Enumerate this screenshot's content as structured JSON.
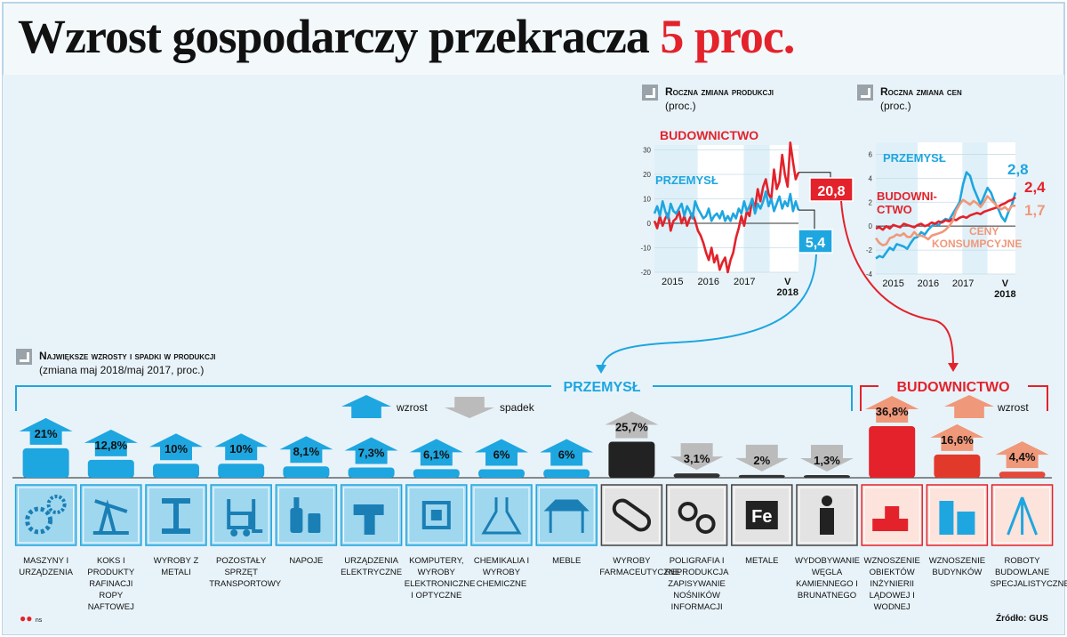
{
  "title": {
    "main": "Wzrost gospodarczy przekracza",
    "accent": "5 proc."
  },
  "production_chart": {
    "heading": "Roczna zmiana produkcji",
    "unit": "(proc.)"
  },
  "prices_chart": {
    "heading": "Roczna zmiana cen",
    "unit": "(proc.)"
  },
  "bars_section": {
    "heading": "Największe wzrosty i spadki w produkcji",
    "unit": "(zmiana maj 2018/maj 2017, proc.)",
    "group_industry": "PRZEMYSŁ",
    "group_construction": "BUDOWNICTWO",
    "legend_up": "wzrost",
    "legend_down": "spadek",
    "legend_up2": "wzrost"
  },
  "footer": {
    "source": "Źródło: GUS",
    "brand": "ns"
  },
  "colors": {
    "blue": "#1ea6e0",
    "red": "#e3222b",
    "salmon": "#f0987a",
    "black": "#222222",
    "panel_bg": "#dff0f8"
  },
  "chart_data": [
    {
      "type": "line",
      "title": "Roczna zmiana produkcji",
      "ylabel": "(proc.)",
      "x_ticks": [
        "2015",
        "2016",
        "2017",
        "V\n2018"
      ],
      "y_ticks": [
        -20,
        -10,
        0,
        10,
        20,
        30
      ],
      "ylim": [
        -20,
        32
      ],
      "series": [
        {
          "name": "BUDOWNICTWO",
          "color": "#e3222b",
          "last_label": "20,8",
          "values": [
            1,
            -2,
            3,
            -1,
            2,
            4,
            -3,
            1,
            2,
            5,
            0,
            3,
            -1,
            2,
            4,
            1,
            -3,
            -5,
            -8,
            -12,
            -15,
            -10,
            -16,
            -13,
            -19,
            -16,
            -14,
            -20,
            -15,
            -12,
            -6,
            -2,
            3,
            -1,
            5,
            3,
            10,
            6,
            14,
            9,
            15,
            18,
            12,
            10,
            22,
            14,
            17,
            28,
            20,
            15,
            33,
            25,
            18,
            20.8
          ]
        },
        {
          "name": "PRZEMYSŁ",
          "color": "#1ea6e0",
          "last_label": "5,4",
          "values": [
            4,
            7,
            3,
            9,
            5,
            2,
            8,
            5,
            4,
            6,
            8,
            3,
            7,
            5,
            2,
            9,
            6,
            4,
            2,
            3,
            6,
            1,
            3,
            4,
            2,
            5,
            1,
            3,
            1,
            4,
            2,
            6,
            4,
            9,
            5,
            7,
            10,
            4,
            8,
            6,
            9,
            13,
            7,
            10,
            5,
            8,
            11,
            6,
            9,
            7,
            12,
            5,
            9,
            5.4
          ]
        }
      ]
    },
    {
      "type": "line",
      "title": "Roczna zmiana cen",
      "ylabel": "(proc.)",
      "x_ticks": [
        "2015",
        "2016",
        "2017",
        "V\n2018"
      ],
      "y_ticks": [
        -4,
        -2,
        0,
        2,
        4,
        6
      ],
      "ylim": [
        -4,
        7
      ],
      "series": [
        {
          "name": "PRZEMYSŁ",
          "color": "#1ea6e0",
          "last_label": "2,8",
          "values": [
            -2.7,
            -2.5,
            -2.6,
            -2.2,
            -1.8,
            -2.0,
            -1.5,
            -1.6,
            -1.7,
            -1.9,
            -1.4,
            -1.0,
            -0.9,
            -0.5,
            -0.7,
            -0.3,
            0.0,
            0.2,
            0.1,
            0.4,
            0.6,
            0.5,
            1.0,
            1.5,
            2.0,
            3.5,
            4.5,
            4.2,
            3.2,
            2.5,
            1.8,
            2.5,
            3.2,
            2.8,
            2.0,
            1.5,
            0.8,
            0.4,
            1.2,
            1.8,
            2.8
          ]
        },
        {
          "name": "BUDOWNICTWO",
          "color": "#e3222b",
          "last_label": "2,4",
          "values": [
            -0.2,
            -0.1,
            -0.3,
            0.0,
            -0.2,
            0.1,
            0.0,
            -0.1,
            0.2,
            0.1,
            0.0,
            -0.1,
            0.1,
            0.2,
            0.0,
            0.1,
            0.3,
            0.2,
            0.4,
            0.3,
            0.5,
            0.4,
            0.6,
            0.5,
            0.7,
            0.8,
            0.7,
            0.9,
            1.0,
            1.1,
            1.0,
            1.2,
            1.3,
            1.4,
            1.5,
            1.6,
            1.8,
            1.9,
            2.1,
            2.2,
            2.4
          ]
        },
        {
          "name": "CENY KONSUMPCYJNE",
          "color": "#f0987a",
          "last_label": "1,7",
          "values": [
            -1.0,
            -1.4,
            -1.6,
            -1.5,
            -1.0,
            -0.9,
            -0.7,
            -0.8,
            -0.6,
            -0.9,
            -0.9,
            -0.5,
            -0.8,
            -0.8,
            -0.9,
            -1.1,
            -0.8,
            -0.7,
            -0.6,
            -0.5,
            -0.3,
            0.0,
            0.4,
            1.3,
            1.8,
            2.2,
            2.0,
            1.8,
            2.1,
            1.9,
            1.6,
            2.0,
            2.5,
            2.2,
            1.9,
            1.6,
            1.4,
            1.6,
            1.3,
            1.7,
            1.7
          ]
        }
      ]
    },
    {
      "type": "bar",
      "title": "Największe wzrosty i spadki w produkcji",
      "ylabel": "(zmiana maj 2018/maj 2017, proc.)",
      "categories": [
        "MASZYNY I URZĄDZENIA",
        "KOKS I PRODUKTY RAFINACJI ROPY NAFTOWEJ",
        "WYROBY Z METALI",
        "POZOSTAŁY SPRZĘT TRANSPORTOWY",
        "NAPOJE",
        "URZĄDZENIA ELEKTRYCZNE",
        "KOMPUTERY, WYROBY ELEKTRONICZNE I OPTYCZNE",
        "CHEMIKALIA I WYROBY CHEMICZNE",
        "MEBLE",
        "WYROBY FARMACEUTYCZNE",
        "POLIGRAFIA I REPRODUKCJA ZAPISYWANIE NOŚNIKÓW INFORMACJI",
        "METALE",
        "WYDOBYWANIE WĘGLA KAMIENNEGO I BRUNATNEGO",
        "WZNOSZENIE OBIEKTÓW INŻYNIERII LĄDOWEJ I WODNEJ",
        "WZNOSZENIE BUDYNKÓW",
        "ROBOTY BUDOWLANE SPECJALISTYCZNE"
      ],
      "labels": [
        "21%",
        "12,8%",
        "10%",
        "10%",
        "8,1%",
        "7,3%",
        "6,1%",
        "6%",
        "6%",
        "25,7%",
        "3,1%",
        "2%",
        "1,3%",
        "36,8%",
        "16,6%",
        "4,4%"
      ],
      "values": [
        21,
        12.8,
        10,
        10,
        8.1,
        7.3,
        6.1,
        6,
        6,
        25.7,
        -3.1,
        -2,
        -1.3,
        36.8,
        16.6,
        4.4
      ],
      "groups": [
        "przemysl",
        "przemysl",
        "przemysl",
        "przemysl",
        "przemysl",
        "przemysl",
        "przemysl",
        "przemysl",
        "przemysl",
        "przemysl",
        "przemysl",
        "przemysl",
        "przemysl",
        "budownictwo",
        "budownictwo",
        "budownictwo"
      ]
    }
  ]
}
